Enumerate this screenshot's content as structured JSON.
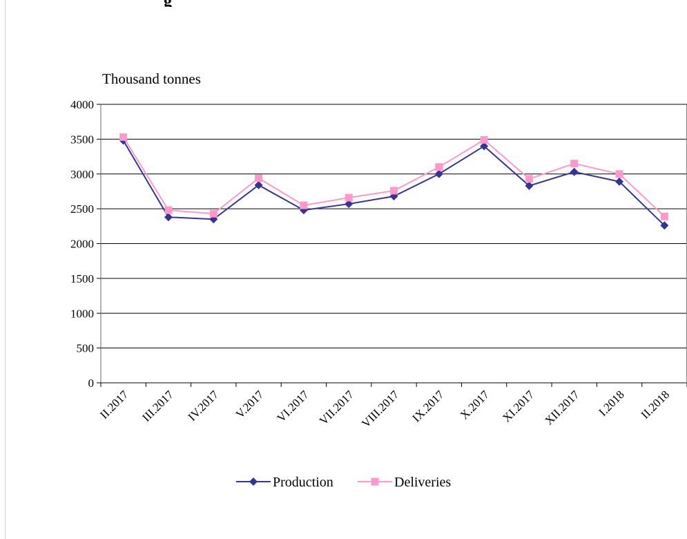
{
  "header": {
    "cut_text": "g"
  },
  "chart_data": {
    "type": "line",
    "unit_label": "Thousand tonnes",
    "title": "",
    "xlabel": "",
    "ylabel": "",
    "ylim": [
      0,
      4000
    ],
    "yticks": [
      0,
      500,
      1000,
      1500,
      2000,
      2500,
      3000,
      3500,
      4000
    ],
    "grid": true,
    "legend_position": "bottom",
    "categories": [
      "II.2017",
      "III.2017",
      "IV.2017",
      "V.2017",
      "VI.2017",
      "VII.2017",
      "VIII.2017",
      "IX.2017",
      "X.2017",
      "XI.2017",
      "XII.2017",
      "I.2018",
      "II.2018"
    ],
    "series": [
      {
        "name": "Production",
        "color": "#333399",
        "marker": "diamond",
        "values": [
          3480,
          2380,
          2350,
          2840,
          2480,
          2570,
          2680,
          3000,
          3400,
          2830,
          3030,
          2890,
          2260
        ]
      },
      {
        "name": "Deliveries",
        "color": "#ff99cc",
        "marker": "square",
        "values": [
          3530,
          2480,
          2430,
          2940,
          2550,
          2660,
          2760,
          3100,
          3490,
          2930,
          3150,
          3000,
          2390
        ]
      }
    ]
  }
}
